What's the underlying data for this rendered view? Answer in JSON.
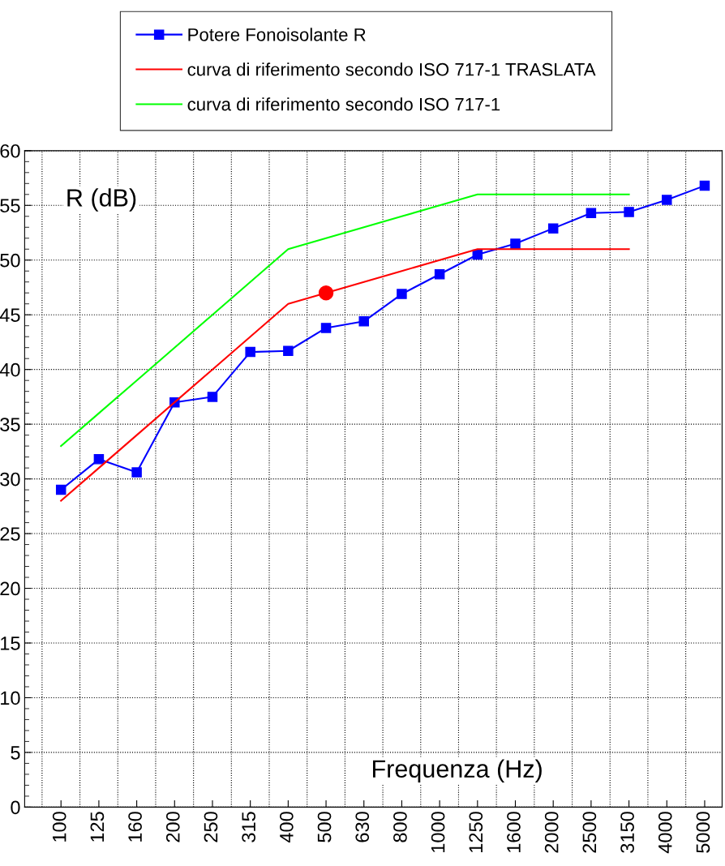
{
  "chart_data": {
    "type": "line",
    "xlabel": "Frequenza (Hz)",
    "ylabel": "R (dB)",
    "categories": [
      "100",
      "125",
      "160",
      "200",
      "250",
      "315",
      "400",
      "500",
      "630",
      "800",
      "1000",
      "1250",
      "1600",
      "2000",
      "2500",
      "3150",
      "4000",
      "5000"
    ],
    "series": [
      {
        "name": "Potere Fonoisolante R",
        "color": "#0000ff",
        "marker": "square",
        "values": [
          29.0,
          31.8,
          30.6,
          37.0,
          37.5,
          41.6,
          41.7,
          43.8,
          44.4,
          46.9,
          48.7,
          50.5,
          51.5,
          52.9,
          54.3,
          54.4,
          55.5,
          56.8
        ]
      },
      {
        "name": "curva di riferimento secondo ISO 717-1 TRASLATA",
        "color": "#ff0000",
        "marker": "none",
        "values": [
          28,
          31,
          34,
          37,
          40,
          43,
          46,
          47,
          48,
          49,
          50,
          51,
          51,
          51,
          51,
          51,
          null,
          null
        ]
      },
      {
        "name": "curva di riferimento secondo ISO 717-1",
        "color": "#00ff00",
        "marker": "none",
        "values": [
          33,
          36,
          39,
          42,
          45,
          48,
          51,
          52,
          53,
          54,
          55,
          56,
          56,
          56,
          56,
          56,
          null,
          null
        ]
      },
      {
        "type": "scatter",
        "color": "#ff0000",
        "marker": "circle",
        "x": [
          "500"
        ],
        "values": [
          47
        ]
      }
    ],
    "ylim": [
      0,
      60
    ],
    "yticks": [
      0,
      5,
      10,
      15,
      20,
      25,
      30,
      35,
      40,
      45,
      50,
      55,
      60
    ],
    "grid": true,
    "legend": "top"
  }
}
